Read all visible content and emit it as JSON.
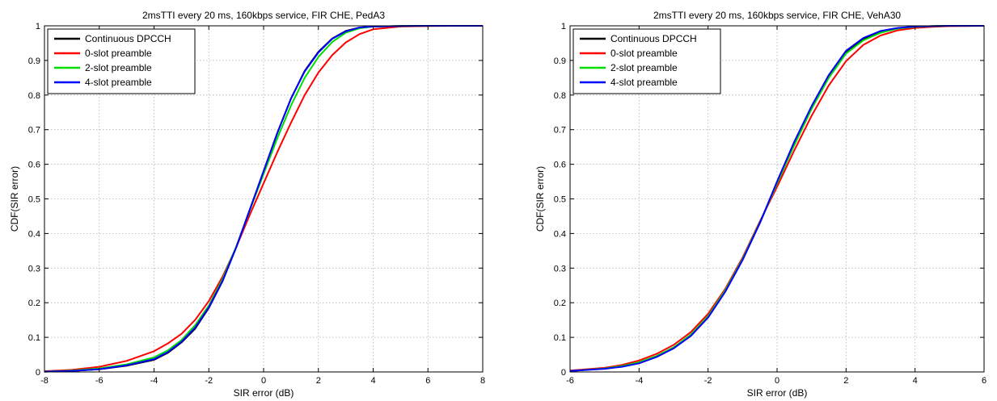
{
  "colors": {
    "continuous": "#000000",
    "slot0": "#ff0000",
    "slot2": "#00dd00",
    "slot4": "#0000ff"
  },
  "chart_data": [
    {
      "type": "line",
      "title": "2msTTI every 20 ms, 160kbps service, FIR CHE, PedA3",
      "xlabel": "SIR error (dB)",
      "ylabel": "CDF(SIR error)",
      "xlim": [
        -8,
        8
      ],
      "ylim": [
        0,
        1
      ],
      "xticks": [
        "-8",
        "-6",
        "-4",
        "-2",
        "0",
        "2",
        "4",
        "6",
        "8"
      ],
      "yticks": [
        "0",
        "0.1",
        "0.2",
        "0.3",
        "0.4",
        "0.5",
        "0.6",
        "0.7",
        "0.8",
        "0.9",
        "1"
      ],
      "grid": true,
      "legend_position": "top-left",
      "x": [
        -8,
        -7,
        -6,
        -5,
        -4,
        -3.5,
        -3,
        -2.5,
        -2,
        -1.5,
        -1,
        -0.5,
        0,
        0.5,
        1,
        1.5,
        2,
        2.5,
        3,
        3.5,
        4,
        5,
        6,
        7,
        8
      ],
      "series": [
        {
          "name": "Continuous DPCCH",
          "color_key": "continuous",
          "values": [
            0.001,
            0.003,
            0.008,
            0.018,
            0.035,
            0.055,
            0.085,
            0.125,
            0.185,
            0.262,
            0.36,
            0.47,
            0.58,
            0.69,
            0.79,
            0.87,
            0.925,
            0.963,
            0.985,
            0.995,
            0.998,
            0.9995,
            1.0,
            1.0,
            1.0
          ]
        },
        {
          "name": "0-slot preamble",
          "color_key": "slot0",
          "values": [
            0.002,
            0.006,
            0.015,
            0.032,
            0.06,
            0.082,
            0.11,
            0.15,
            0.205,
            0.275,
            0.36,
            0.455,
            0.545,
            0.635,
            0.72,
            0.8,
            0.865,
            0.915,
            0.952,
            0.976,
            0.99,
            0.998,
            0.9995,
            1.0,
            1.0
          ]
        },
        {
          "name": "2-slot preamble",
          "color_key": "slot2",
          "values": [
            0.001,
            0.004,
            0.01,
            0.022,
            0.042,
            0.062,
            0.092,
            0.135,
            0.192,
            0.268,
            0.362,
            0.468,
            0.572,
            0.675,
            0.77,
            0.85,
            0.91,
            0.953,
            0.98,
            0.993,
            0.998,
            0.9995,
            1.0,
            1.0,
            1.0
          ]
        },
        {
          "name": "4-slot preamble",
          "color_key": "slot4",
          "values": [
            0.001,
            0.003,
            0.008,
            0.019,
            0.037,
            0.057,
            0.087,
            0.128,
            0.187,
            0.263,
            0.36,
            0.47,
            0.58,
            0.69,
            0.79,
            0.868,
            0.923,
            0.962,
            0.984,
            0.995,
            0.998,
            0.9995,
            1.0,
            1.0,
            1.0
          ]
        }
      ]
    },
    {
      "type": "line",
      "title": "2msTTI every 20 ms, 160kbps service, FIR CHE, VehA30",
      "xlabel": "SIR error (dB)",
      "ylabel": "CDF(SIR error)",
      "xlim": [
        -6,
        6
      ],
      "ylim": [
        0,
        1
      ],
      "xticks": [
        "-6",
        "-4",
        "-2",
        "0",
        "2",
        "4",
        "6"
      ],
      "yticks": [
        "0",
        "0.1",
        "0.2",
        "0.3",
        "0.4",
        "0.5",
        "0.6",
        "0.7",
        "0.8",
        "0.9",
        "1"
      ],
      "grid": true,
      "legend_position": "top-left",
      "x": [
        -6,
        -5,
        -4.5,
        -4,
        -3.5,
        -3,
        -2.5,
        -2,
        -1.5,
        -1,
        -0.5,
        0,
        0.5,
        1,
        1.5,
        2,
        2.5,
        3,
        3.5,
        4,
        4.5,
        5,
        6
      ],
      "series": [
        {
          "name": "Continuous DPCCH",
          "color_key": "continuous",
          "values": [
            0.003,
            0.01,
            0.016,
            0.027,
            0.045,
            0.07,
            0.107,
            0.16,
            0.235,
            0.325,
            0.43,
            0.545,
            0.66,
            0.765,
            0.855,
            0.925,
            0.962,
            0.983,
            0.993,
            0.998,
            0.999,
            1.0,
            1.0
          ]
        },
        {
          "name": "0-slot preamble",
          "color_key": "slot0",
          "values": [
            0.004,
            0.012,
            0.02,
            0.033,
            0.052,
            0.078,
            0.115,
            0.168,
            0.24,
            0.33,
            0.435,
            0.535,
            0.64,
            0.74,
            0.828,
            0.898,
            0.945,
            0.972,
            0.987,
            0.994,
            0.997,
            0.999,
            1.0
          ]
        },
        {
          "name": "2-slot preamble",
          "color_key": "slot2",
          "values": [
            0.003,
            0.01,
            0.017,
            0.028,
            0.046,
            0.071,
            0.108,
            0.161,
            0.236,
            0.326,
            0.432,
            0.545,
            0.655,
            0.76,
            0.85,
            0.92,
            0.958,
            0.98,
            0.992,
            0.997,
            0.999,
            1.0,
            1.0
          ]
        },
        {
          "name": "4-slot preamble",
          "color_key": "slot4",
          "values": [
            0.003,
            0.009,
            0.015,
            0.025,
            0.043,
            0.068,
            0.104,
            0.157,
            0.232,
            0.323,
            0.43,
            0.55,
            0.665,
            0.768,
            0.858,
            0.928,
            0.965,
            0.985,
            0.994,
            0.998,
            0.999,
            1.0,
            1.0
          ]
        }
      ]
    }
  ]
}
